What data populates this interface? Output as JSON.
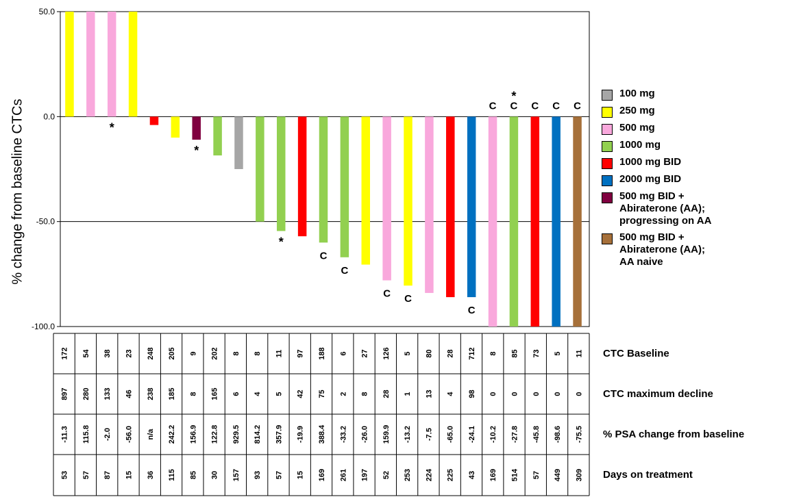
{
  "chart_data": {
    "type": "bar",
    "title": "",
    "ylabel": "% change from baseline CTCs",
    "ylim": [
      -100,
      50
    ],
    "yticks": [
      "50.0",
      "0.0",
      "-50.0",
      "-100.0"
    ],
    "ytick_values": [
      50,
      0,
      -50,
      -100
    ],
    "grid": "horizontal lines at -50, 0 and 50",
    "legend_placement": "right",
    "groups": [
      {
        "name": "100 mg",
        "color": "#a6a6a6"
      },
      {
        "name": "250 mg",
        "color": "#ffff00"
      },
      {
        "name": "500 mg",
        "color": "#f9a8dc"
      },
      {
        "name": "1000 mg",
        "color": "#92d050"
      },
      {
        "name": "1000 mg BID",
        "color": "#ff0000"
      },
      {
        "name": "2000 mg BID",
        "color": "#0070c0"
      },
      {
        "name": "500 mg BID +\nAbiraterone (AA);\nprogressing on AA",
        "color": "#800040"
      },
      {
        "name": "500 mg BID +\nAbiraterone (AA);\nAA naive",
        "color": "#a6703a"
      }
    ],
    "bars": [
      {
        "group": 1,
        "value": 50,
        "top_note": "",
        "bottom_note": ""
      },
      {
        "group": 2,
        "value": 50,
        "top_note": "",
        "bottom_note": ""
      },
      {
        "group": 2,
        "value": 50,
        "top_note": "",
        "bottom_note": "*"
      },
      {
        "group": 1,
        "value": 50,
        "top_note": "",
        "bottom_note": ""
      },
      {
        "group": 4,
        "value": -4,
        "top_note": "",
        "bottom_note": ""
      },
      {
        "group": 1,
        "value": -10,
        "top_note": "",
        "bottom_note": ""
      },
      {
        "group": 6,
        "value": -11,
        "top_note": "",
        "bottom_note": "*"
      },
      {
        "group": 3,
        "value": -18.5,
        "top_note": "",
        "bottom_note": ""
      },
      {
        "group": 0,
        "value": -25,
        "top_note": "",
        "bottom_note": ""
      },
      {
        "group": 3,
        "value": -50,
        "top_note": "",
        "bottom_note": ""
      },
      {
        "group": 3,
        "value": -54.5,
        "top_note": "",
        "bottom_note": "*"
      },
      {
        "group": 4,
        "value": -57,
        "top_note": "",
        "bottom_note": ""
      },
      {
        "group": 3,
        "value": -60,
        "top_note": "",
        "bottom_note": "C"
      },
      {
        "group": 3,
        "value": -67,
        "top_note": "",
        "bottom_note": "C"
      },
      {
        "group": 1,
        "value": -70.5,
        "top_note": "",
        "bottom_note": ""
      },
      {
        "group": 2,
        "value": -78,
        "top_note": "",
        "bottom_note": "C"
      },
      {
        "group": 1,
        "value": -80.5,
        "top_note": "",
        "bottom_note": "C"
      },
      {
        "group": 2,
        "value": -84,
        "top_note": "",
        "bottom_note": ""
      },
      {
        "group": 4,
        "value": -86,
        "top_note": "",
        "bottom_note": ""
      },
      {
        "group": 5,
        "value": -86,
        "top_note": "",
        "bottom_note": "C"
      },
      {
        "group": 2,
        "value": -100,
        "top_note": "C",
        "bottom_note": ""
      },
      {
        "group": 3,
        "value": -100,
        "top_note": "*\nC",
        "bottom_note": ""
      },
      {
        "group": 4,
        "value": -100,
        "top_note": "C",
        "bottom_note": ""
      },
      {
        "group": 5,
        "value": -100,
        "top_note": "C",
        "bottom_note": ""
      },
      {
        "group": 7,
        "value": -100,
        "top_note": "C",
        "bottom_note": ""
      }
    ],
    "table": [
      {
        "label": "CTC Baseline",
        "values": [
          "172",
          "54",
          "38",
          "23",
          "248",
          "205",
          "9",
          "202",
          "8",
          "8",
          "11",
          "97",
          "188",
          "6",
          "27",
          "126",
          "5",
          "80",
          "28",
          "712",
          "8",
          "85",
          "73",
          "5",
          "11"
        ]
      },
      {
        "label": "CTC maximum decline",
        "values": [
          "897",
          "280",
          "133",
          "46",
          "238",
          "185",
          "8",
          "165",
          "6",
          "4",
          "5",
          "42",
          "75",
          "2",
          "8",
          "28",
          "1",
          "13",
          "4",
          "98",
          "0",
          "0",
          "0",
          "0",
          "0"
        ]
      },
      {
        "label": "% PSA change from baseline",
        "values": [
          "-11.3",
          "115.8",
          "-2.0",
          "-56.0",
          "n/a",
          "242.2",
          "156.9",
          "122.8",
          "929.5",
          "814.2",
          "357.9",
          "-19.9",
          "388.4",
          "-33.2",
          "-26.0",
          "159.9",
          "-13.2",
          "-7.5",
          "-65.0",
          "-24.1",
          "-10.2",
          "-27.8",
          "-45.8",
          "-98.6",
          "-75.5"
        ]
      },
      {
        "label": "Days on treatment",
        "values": [
          "53",
          "57",
          "87",
          "15",
          "36",
          "115",
          "85",
          "30",
          "157",
          "93",
          "57",
          "15",
          "169",
          "261",
          "197",
          "52",
          "253",
          "224",
          "225",
          "43",
          "169",
          "514",
          "57",
          "449",
          "309"
        ]
      }
    ]
  }
}
